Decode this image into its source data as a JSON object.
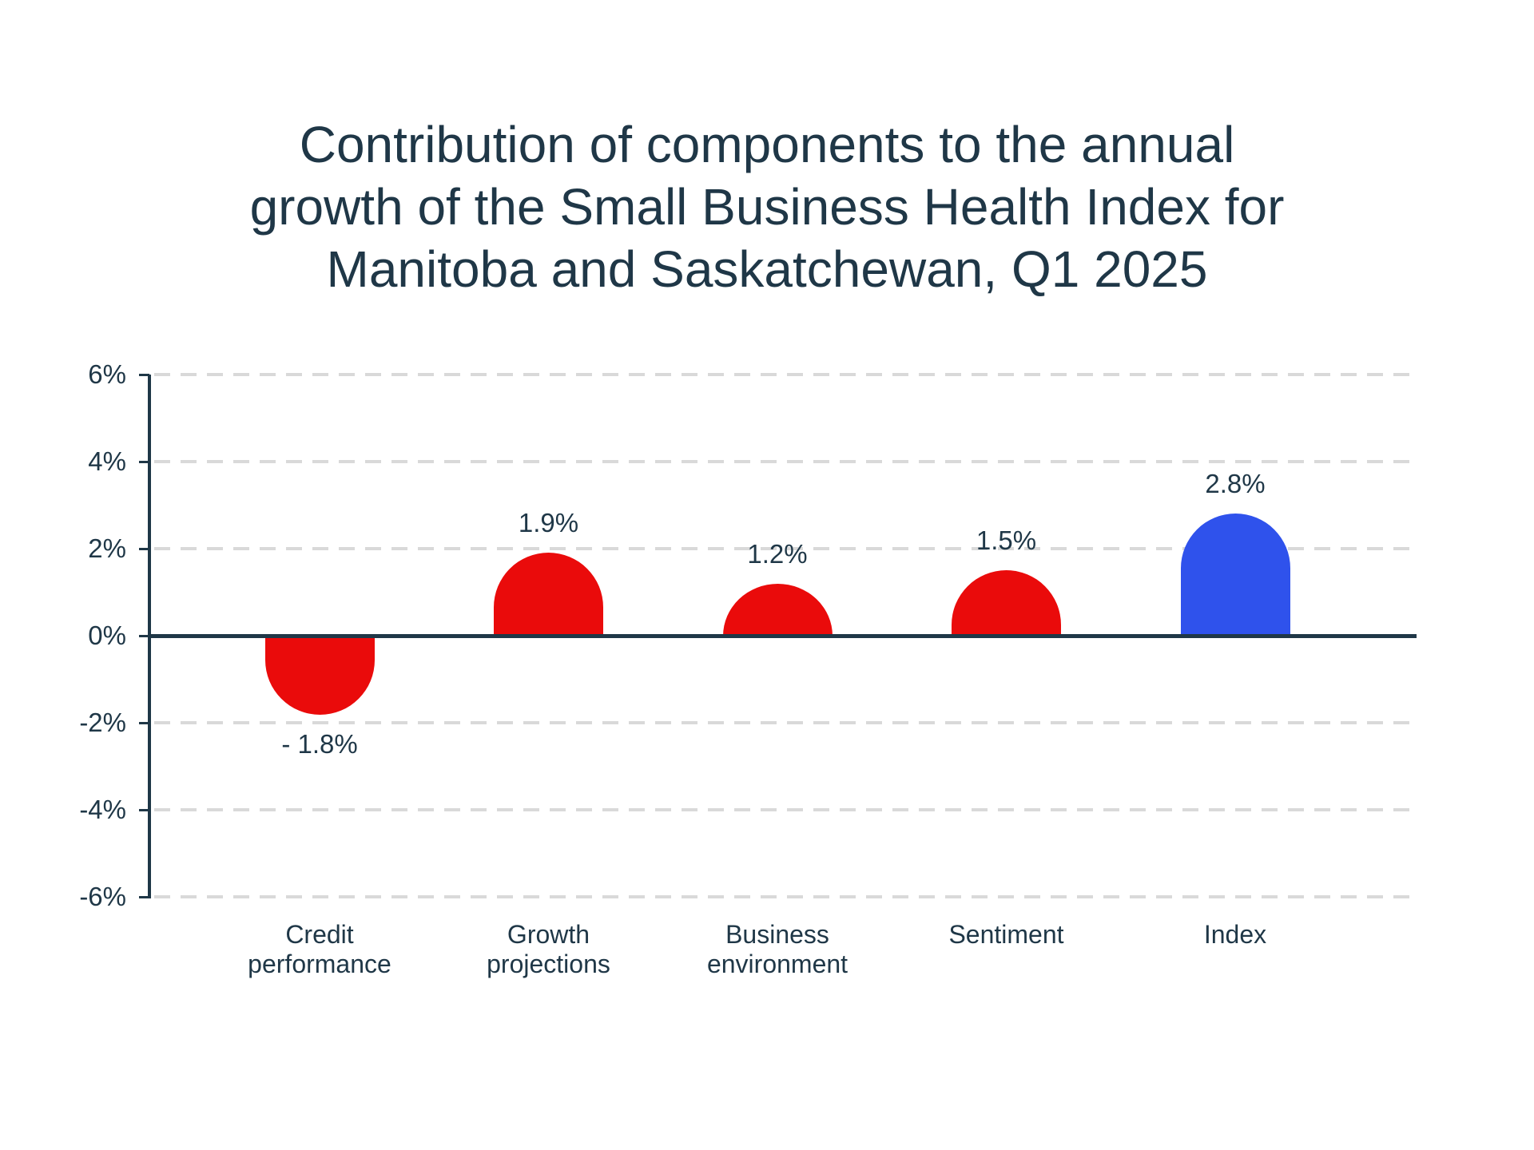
{
  "chart_data": {
    "type": "bar",
    "title": "Contribution of components to the annual growth of the Small Business Health Index for Manitoba and Saskatchewan, Q1 2025",
    "title_lines": [
      "Contribution of components to the annual",
      "growth of the Small Business Health Index for",
      "Manitoba and Saskatchewan, Q1 2025"
    ],
    "categories": [
      "Credit performance",
      "Growth projections",
      "Business environment",
      "Sentiment",
      "Index"
    ],
    "category_label_lines": [
      [
        "Credit",
        "performance"
      ],
      [
        "Growth",
        "projections"
      ],
      [
        "Business",
        "environment"
      ],
      [
        "Sentiment"
      ],
      [
        "Index"
      ]
    ],
    "values": [
      -1.8,
      1.9,
      1.2,
      1.5,
      2.8
    ],
    "value_labels": [
      "- 1.8%",
      "1.9%",
      "1.2%",
      "1.5%",
      "2.8%"
    ],
    "bar_colors": [
      "#EA0B0B",
      "#EA0B0B",
      "#EA0B0B",
      "#EA0B0B",
      "#2F52EC"
    ],
    "y_ticks": [
      "6%",
      "4%",
      "2%",
      "0%",
      "-2%",
      "-4%",
      "-6%"
    ],
    "y_tick_values": [
      6,
      4,
      2,
      0,
      -2,
      -4,
      -6
    ],
    "ylim": [
      -6,
      6
    ],
    "xlabel": "",
    "ylabel": "",
    "grid": "horizontal dashed gridlines at every 2%",
    "legend": "none",
    "colors": {
      "component_bars": "#EA0B0B",
      "index_bar": "#2F52EC",
      "text_and_axis": "#1F3747",
      "gridline": "#D9D9D9",
      "background": "#FFFFFF"
    }
  }
}
